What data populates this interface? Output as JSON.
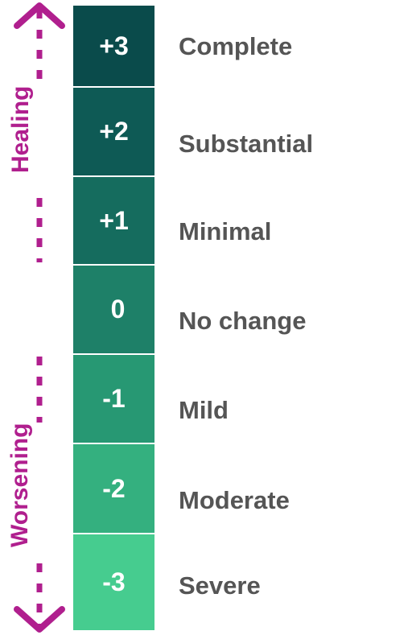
{
  "axis": {
    "healing_label": "Healing",
    "worsening_label": "Worsening",
    "color": "#b01f8e"
  },
  "scale": {
    "levels": [
      {
        "value": "+3",
        "label": "Complete",
        "color": "#0a4b4b"
      },
      {
        "value": "+2",
        "label": "Substantial",
        "color": "#0e5a55"
      },
      {
        "value": "+1",
        "label": "Minimal",
        "color": "#156c5e"
      },
      {
        "value": "0",
        "label": "No change",
        "color": "#1e8068"
      },
      {
        "value": "-1",
        "label": "Mild",
        "color": "#279873"
      },
      {
        "value": "-2",
        "label": "Moderate",
        "color": "#34b07f"
      },
      {
        "value": "-3",
        "label": "Severe",
        "color": "#46cc8f"
      }
    ]
  }
}
